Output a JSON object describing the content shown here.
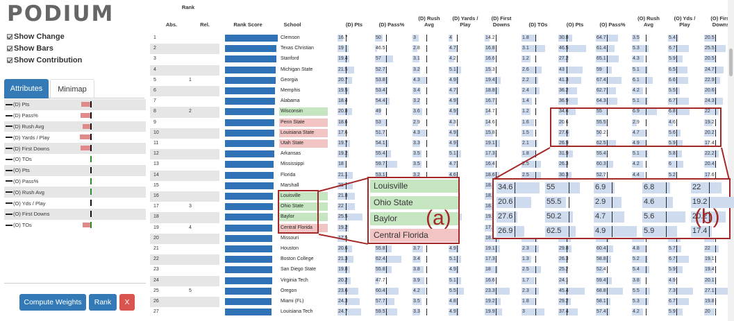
{
  "app": {
    "logo": "PODIUM"
  },
  "options": [
    {
      "label": "Show Change"
    },
    {
      "label": "Show Bars"
    },
    {
      "label": "Show Contribution"
    }
  ],
  "tabs": [
    {
      "label": "Attributes"
    },
    {
      "label": "Minimap"
    }
  ],
  "attributes": [
    {
      "label": "(D) Pts",
      "w": 0.7,
      "bar": true
    },
    {
      "label": "(D) Pass%",
      "w": 0.8,
      "bar": true
    },
    {
      "label": "(D) Rush Avg",
      "w": 0.6,
      "bar": true
    },
    {
      "label": "(D) Yards / Play",
      "w": 0.85,
      "bar": true
    },
    {
      "label": "(D) First Downs",
      "w": 0.8,
      "bar": true
    },
    {
      "label": "(O) TOs",
      "w": 0.0,
      "bar": false,
      "green": true
    },
    {
      "label": "(O) Pts",
      "w": 0.0,
      "bar": false
    },
    {
      "label": "(O) Pass%",
      "w": 0.0,
      "bar": false,
      "green": true
    },
    {
      "label": "(O) Rush Avg",
      "w": 0.0,
      "bar": false,
      "green": true
    },
    {
      "label": "(O) Yds / Play",
      "w": 0.0,
      "bar": false
    },
    {
      "label": "(O) First Downs",
      "w": 0.0,
      "bar": false
    },
    {
      "label": "(O) TOs",
      "w": 0.6,
      "bar": true,
      "green": true
    }
  ],
  "buttons": {
    "compute": "Compute Weights",
    "rank": "Rank",
    "close": "X"
  },
  "colors": {
    "accent": "#337ab7",
    "danger": "#d9534f",
    "rankbar": "#2f72b5",
    "highlight": "#a42828",
    "green_row": "#c6e6c2",
    "red_row": "#f3c4c4"
  },
  "headers": {
    "rank": "Rank",
    "abs": "Abs.",
    "rel": "Rel.",
    "rank_score": "Rank Score",
    "school": "School",
    "cols": [
      [
        "(D) Pts"
      ],
      [
        "(D) Pass%"
      ],
      [
        "(D) Rush",
        "Avg"
      ],
      [
        "(D) Yards /",
        "Play"
      ],
      [
        "(D) First",
        "Downs"
      ],
      [
        "(D) TOs"
      ],
      [
        "(O) Pts"
      ],
      [
        "(O) Pass%"
      ],
      [
        "(O) Rush",
        "Avg"
      ],
      [
        "(O) Yds /",
        "Play"
      ],
      [
        "(O) First",
        "Downs"
      ]
    ]
  },
  "rows": [
    {
      "abs": "1",
      "rel": "",
      "school": "Clemson",
      "hl": "",
      "score": 1.0,
      "v": [
        "16.7",
        "50",
        "3",
        "4",
        "14.2",
        "1.8",
        "30.8",
        "64.7",
        "3.5",
        "5.4",
        "20.5"
      ]
    },
    {
      "abs": "2",
      "rel": "",
      "school": "Texas Christian",
      "hl": "",
      "score": 0.98,
      "v": [
        "19",
        "46.5",
        "2.8",
        "4.7",
        "16.8",
        "3.1",
        "46.5",
        "61.4",
        "5.3",
        "6.7",
        "25.5"
      ]
    },
    {
      "abs": "3",
      "rel": "",
      "school": "Stanford",
      "hl": "",
      "score": 0.97,
      "v": [
        "19.4",
        "57",
        "3.1",
        "4.2",
        "16.6",
        "1.2",
        "27.2",
        "65.1",
        "4.3",
        "5.9",
        "20.5"
      ]
    },
    {
      "abs": "4",
      "rel": "",
      "school": "Michigan State",
      "hl": "",
      "score": 0.96,
      "v": [
        "21.5",
        "52.7",
        "3.2",
        "5.1",
        "15.3",
        "2.6",
        "43",
        "59",
        "5.1",
        "6.5",
        "24.7"
      ]
    },
    {
      "abs": "5",
      "rel": "1",
      "school": "Georgia",
      "hl": "",
      "score": 0.96,
      "v": [
        "20.7",
        "53.8",
        "4.3",
        "4.9",
        "19.4",
        "2.2",
        "41.3",
        "67.4",
        "6.1",
        "6.6",
        "22.9"
      ]
    },
    {
      "abs": "6",
      "rel": "",
      "school": "Memphis",
      "hl": "",
      "score": 0.95,
      "v": [
        "19.5",
        "53.4",
        "3.4",
        "4.7",
        "18.8",
        "2.4",
        "36.2",
        "62.7",
        "4.2",
        "5.5",
        "20.6"
      ]
    },
    {
      "abs": "7",
      "rel": "",
      "school": "Alabama",
      "hl": "",
      "score": 0.95,
      "v": [
        "18.4",
        "54.4",
        "3.2",
        "4.9",
        "16.7",
        "1.4",
        "36.9",
        "64.3",
        "5.1",
        "6.7",
        "24.3"
      ]
    },
    {
      "abs": "8",
      "rel": "2",
      "school": "Wisconsin",
      "hl": "g",
      "score": 0.94,
      "v": [
        "20.8",
        "49",
        "3.6",
        "4.9",
        "14.7",
        "1.2",
        "34.6",
        "55",
        "6.9",
        "6.8",
        "22"
      ]
    },
    {
      "abs": "9",
      "rel": "",
      "school": "Penn State",
      "hl": "r",
      "score": 0.94,
      "v": [
        "18.6",
        "53",
        "2.9",
        "4.3",
        "14.6",
        "1.6",
        "20.6",
        "55.5",
        "2.9",
        "4.6",
        "19.2"
      ]
    },
    {
      "abs": "10",
      "rel": "",
      "school": "Louisiana State",
      "hl": "r",
      "score": 0.93,
      "v": [
        "17.6",
        "51.7",
        "4.3",
        "4.9",
        "15.8",
        "1.5",
        "27.6",
        "50.2",
        "4.7",
        "5.6",
        "20.2"
      ]
    },
    {
      "abs": "11",
      "rel": "",
      "school": "Utah State",
      "hl": "r",
      "score": 0.93,
      "v": [
        "19.7",
        "54.1",
        "3.3",
        "4.9",
        "19.1",
        "2.1",
        "26.9",
        "62.5",
        "4.9",
        "5.9",
        "17.4"
      ]
    },
    {
      "abs": "12",
      "rel": "",
      "school": "Arkansas",
      "hl": "",
      "score": 0.93,
      "v": [
        "19.2",
        "55.4",
        "3.5",
        "5.1",
        "17.3",
        "1.8",
        "31.9",
        "55.4",
        "5.1",
        "5.8",
        "22.2"
      ]
    },
    {
      "abs": "13",
      "rel": "",
      "school": "Mississippi",
      "hl": "",
      "score": 0.92,
      "v": [
        "18",
        "59.7",
        "3.5",
        "4.7",
        "16.4",
        "2.5",
        "26.3",
        "60.3",
        "4.2",
        "6",
        "20.4"
      ]
    },
    {
      "abs": "14",
      "rel": "",
      "school": "Florida",
      "hl": "",
      "score": 0.92,
      "v": [
        "21.1",
        "53.1",
        "3.2",
        "4.6",
        "18.6",
        "2.5",
        "30.3",
        "52.7",
        "4.4",
        "5.2",
        "17.6"
      ]
    },
    {
      "abs": "15",
      "rel": "",
      "school": "Marshall",
      "hl": "",
      "score": 0.92,
      "v": [
        "21",
        "52.5",
        "3.2",
        "4.7",
        "18.1",
        "2",
        "29",
        "57",
        "4.5",
        "5.4",
        "20"
      ]
    },
    {
      "abs": "16",
      "rel": "",
      "school": "Louisville",
      "hl": "g",
      "score": 0.91,
      "v": [
        "21.8",
        "53",
        "3.6",
        "5",
        "18.9",
        "1.7",
        "30",
        "57.5",
        "4.6",
        "5.6",
        "20.3"
      ]
    },
    {
      "abs": "17",
      "rel": "3",
      "school": "Ohio State",
      "hl": "g",
      "score": 0.91,
      "v": [
        "22",
        "52",
        "3.4",
        "4.9",
        "18.6",
        "1.8",
        "30.5",
        "58",
        "4.7",
        "5.7",
        "20.5"
      ]
    },
    {
      "abs": "18",
      "rel": "",
      "school": "Baylor",
      "hl": "g",
      "score": 0.91,
      "v": [
        "25.5",
        "53.5",
        "3.7",
        "5.2",
        "19.7",
        "1.9",
        "30.1",
        "58.5",
        "4.8",
        "5.8",
        "20.8"
      ]
    },
    {
      "abs": "19",
      "rel": "4",
      "school": "Central Florida",
      "hl": "r",
      "score": 0.9,
      "v": [
        "19.2",
        "54",
        "3.5",
        "4.9",
        "17.3",
        "2",
        "28.5",
        "57",
        "4.6",
        "5.5",
        "19.8"
      ]
    },
    {
      "abs": "20",
      "rel": "",
      "school": "Missouri",
      "hl": "",
      "score": 0.9,
      "v": [
        "17.5",
        "54",
        "3.4",
        "4.8",
        "18.6",
        "2.1",
        "29",
        "56.5",
        "4.5",
        "5.6",
        "20"
      ]
    },
    {
      "abs": "21",
      "rel": "",
      "school": "Houston",
      "hl": "",
      "score": 0.9,
      "v": [
        "20.6",
        "55.8",
        "3.7",
        "4.9",
        "19.1",
        "2.3",
        "29.8",
        "60.4",
        "4.8",
        "5.7",
        "22"
      ]
    },
    {
      "abs": "22",
      "rel": "",
      "school": "Boston College",
      "hl": "",
      "score": 0.89,
      "v": [
        "21.3",
        "62.4",
        "3.4",
        "5.1",
        "17.3",
        "1.3",
        "26.3",
        "58.8",
        "5.2",
        "6.7",
        "19.1"
      ]
    },
    {
      "abs": "23",
      "rel": "",
      "school": "San Diego State",
      "hl": "",
      "score": 0.89,
      "v": [
        "19.8",
        "55.8",
        "3.8",
        "4.9",
        "18",
        "2.5",
        "25.2",
        "52.4",
        "5.4",
        "5.9",
        "19.4"
      ]
    },
    {
      "abs": "24",
      "rel": "",
      "school": "Virginia Tech",
      "hl": "",
      "score": 0.89,
      "v": [
        "20.2",
        "47.7",
        "3.9",
        "5.1",
        "16.6",
        "1.7",
        "24.1",
        "59.4",
        "3.8",
        "4.9",
        "20.1"
      ]
    },
    {
      "abs": "25",
      "rel": "5",
      "school": "Oregon",
      "hl": "",
      "score": 0.88,
      "v": [
        "23.6",
        "60.4",
        "4.2",
        "5.5",
        "23.3",
        "2.3",
        "45.4",
        "68.8",
        "5.5",
        "7.3",
        "27.1"
      ]
    },
    {
      "abs": "26",
      "rel": "",
      "school": "Miami (FL)",
      "hl": "",
      "score": 0.88,
      "v": [
        "24.3",
        "57.7",
        "3.5",
        "4.8",
        "19.2",
        "1.8",
        "29.2",
        "58.1",
        "5.3",
        "6.7",
        "19.8"
      ]
    },
    {
      "abs": "27",
      "rel": "",
      "school": "Louisiana Tech",
      "hl": "",
      "score": 0.88,
      "v": [
        "24.7",
        "59.5",
        "3.3",
        "4.9",
        "19.9",
        "3",
        "37.4",
        "57.4",
        "4.2",
        "5.9",
        "20"
      ]
    }
  ],
  "zoom_a": {
    "label": "(a)",
    "items": [
      {
        "name": "Louisville",
        "hl": "g"
      },
      {
        "name": "Ohio State",
        "hl": "g"
      },
      {
        "name": "Baylor",
        "hl": "g"
      },
      {
        "name": "Central Florida",
        "hl": "r"
      }
    ]
  },
  "zoom_b": {
    "label": "(b)",
    "rows": [
      [
        "34.6",
        "55",
        "6.9",
        "6.8",
        "22"
      ],
      [
        "20.6",
        "55.5",
        "2.9",
        "4.6",
        "19.2"
      ],
      [
        "27.6",
        "50.2",
        "4.7",
        "5.6",
        "20.2"
      ],
      [
        "26.9",
        "62.5",
        "4.9",
        "5.9",
        "17.4"
      ]
    ]
  }
}
